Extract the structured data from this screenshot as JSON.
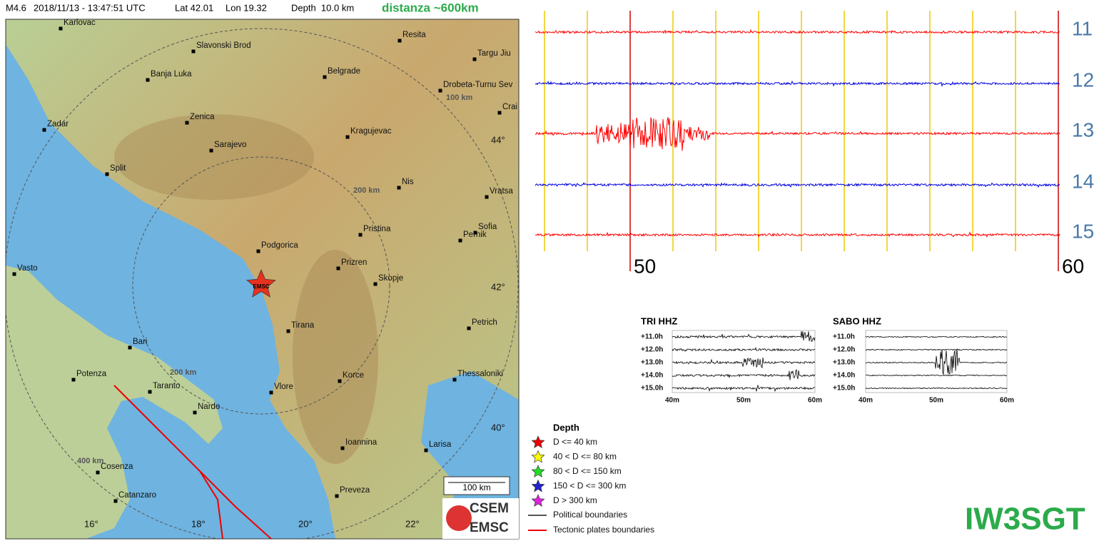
{
  "header": {
    "magnitude": "M4.6",
    "datetime": "2018/11/13 - 13:47:51 UTC",
    "lat": "Lat 42.01",
    "lon": "Lon 19.32",
    "depth": "Depth  10.0 km",
    "distance": "distanza ~600km"
  },
  "map": {
    "cities": [
      "Karlovac",
      "Slavonski Brod",
      "Resita",
      "Targu Jiu",
      "Banja Luka",
      "Belgrade",
      "Drobeta-Turnu Sev",
      "Crai",
      "Zenica",
      "Zadar",
      "Kragujevac",
      "Sarajevo",
      "Split",
      "Nis",
      "Vratsa",
      "Pristina",
      "Sofia",
      "Pernik",
      "Podgorica",
      "Prizren",
      "Vasto",
      "Skopje",
      "Tirana",
      "Petrich",
      "Bari",
      "Korce",
      "Thessaloniki",
      "Potenza",
      "Taranto",
      "Vlore",
      "Nardo",
      "Larisa",
      "Ioannina",
      "Cosenza",
      "Catanzaro",
      "Preveza"
    ],
    "latitudes": [
      "44°",
      "42°",
      "40°"
    ],
    "longitudes": [
      "16°",
      "18°",
      "20°",
      "22°"
    ],
    "ring_labels": [
      "100 km",
      "200 km",
      "200 km",
      "400 km"
    ],
    "epicenter_label": "EMSC",
    "scale_bar": "100 km",
    "logo": [
      "CSEM",
      "EMSC"
    ]
  },
  "legend": {
    "title": "Depth",
    "depth_classes": [
      "D <= 40 km",
      "40 < D <= 80 km",
      "80 < D <= 150 km",
      "150 < D <= 300 km",
      "D > 300 km"
    ],
    "lines": [
      "Political boundaries",
      "Tectonic plates boundaries"
    ]
  },
  "seismogram": {
    "traces": [
      "11",
      "12",
      "13",
      "14",
      "15"
    ],
    "minutes": [
      "50",
      "60"
    ]
  },
  "stations": [
    {
      "name": "TRI HHZ",
      "hours": [
        "+11.0h",
        "+12.0h",
        "+13.0h",
        "+14.0h",
        "+15.0h"
      ],
      "minutes": [
        "40m",
        "50m",
        "60m"
      ]
    },
    {
      "name": "SABO HHZ",
      "hours": [
        "+11.0h",
        "+12.0h",
        "+13.0h",
        "+14.0h",
        "+15.0h"
      ],
      "minutes": [
        "40m",
        "50m",
        "60m"
      ]
    }
  ],
  "watermark": "IW3SGT"
}
